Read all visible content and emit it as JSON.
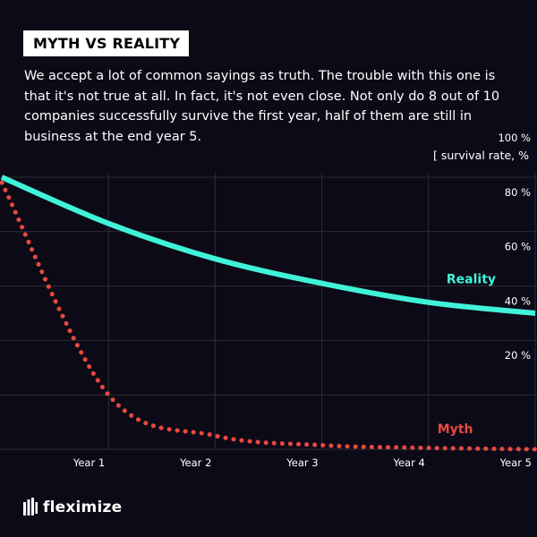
{
  "header": {
    "tag": "MYTH VS REALITY",
    "intro": "We accept a lot of common sayings as truth. The trouble with this one is that it's not true at all. In fact, it's not even close. Not only do 8 out of 10 companies successfully survive the first year, half of them are still in business at the end year 5."
  },
  "chart_data": {
    "type": "line",
    "unit_label": "[ survival rate, %",
    "categories": [
      "Year 1",
      "Year 2",
      "Year 3",
      "Year 4",
      "Year 5"
    ],
    "x": [
      0,
      1,
      2,
      3,
      4,
      5
    ],
    "ylim": [
      0,
      100
    ],
    "y_ticks": [
      20,
      40,
      60,
      80,
      100
    ],
    "y_tick_labels": [
      "20 %",
      "40 %",
      "60 %",
      "80 %",
      "100 %"
    ],
    "grid": true,
    "series": [
      {
        "name": "Reality",
        "values": [
          100,
          83,
          70,
          61,
          54,
          50
        ],
        "color": "#40f3d8",
        "style": "solid"
      },
      {
        "name": "Myth",
        "values": [
          98,
          20,
          5,
          1.5,
          0.5,
          0
        ],
        "color": "#e8493f",
        "style": "dotted"
      }
    ]
  },
  "brand": {
    "name": "fleximize"
  }
}
